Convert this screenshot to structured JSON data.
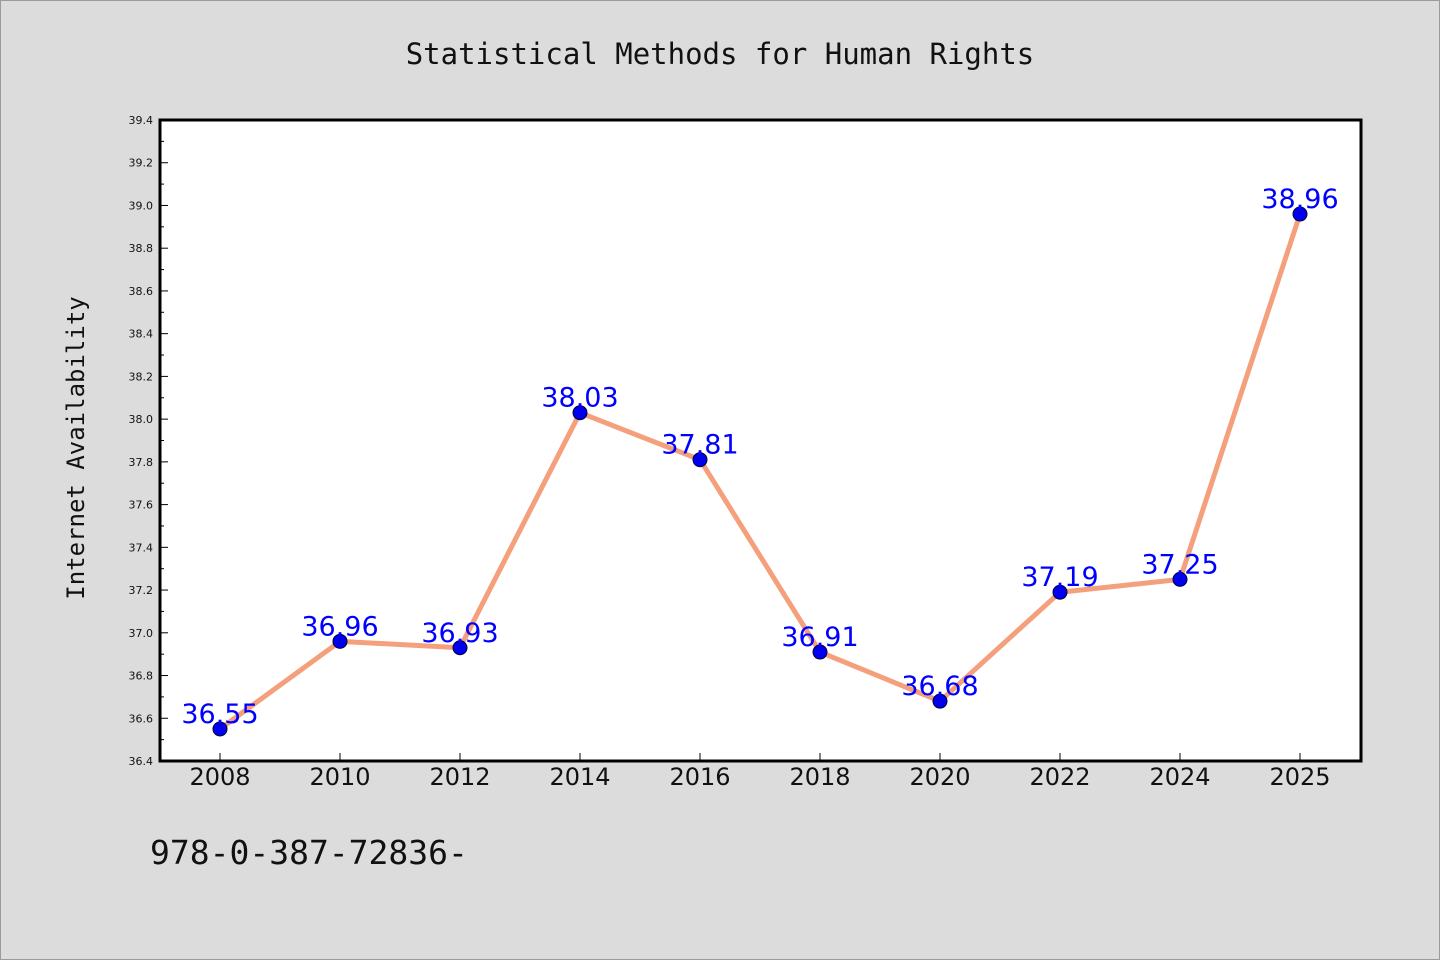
{
  "chart_data": {
    "type": "line",
    "title": "Statistical Methods for Human Rights",
    "xlabel": "",
    "ylabel": "Internet Availability",
    "categories": [
      "2008",
      "2010",
      "2012",
      "2014",
      "2016",
      "2018",
      "2020",
      "2022",
      "2024",
      "2025"
    ],
    "series": [
      {
        "values": [
          36.55,
          36.96,
          36.93,
          38.03,
          37.81,
          36.91,
          36.68,
          37.19,
          37.25,
          38.96
        ],
        "data_labels": [
          "36.55",
          "36.96",
          "36.93",
          "38.03",
          "37.81",
          "36.91",
          "36.68",
          "37.19",
          "37.25",
          "38.96"
        ]
      }
    ],
    "ylim": [
      36.4,
      39.4
    ],
    "yticks": [
      "36.4",
      "36.6",
      "36.8",
      "37.0",
      "37.2",
      "37.4",
      "37.6",
      "37.8",
      "38.0",
      "38.2",
      "38.4",
      "38.6",
      "38.8",
      "39.0",
      "39.2",
      "39.4"
    ],
    "grid": false,
    "legend": "none",
    "colors": {
      "line": "#f4a07c",
      "marker": "#0000ee",
      "data_label": "#0000ff",
      "plot_background": "#ffffff",
      "figure_background": "#dcdcdc"
    }
  },
  "footer_text": "978-0-387-72836-"
}
